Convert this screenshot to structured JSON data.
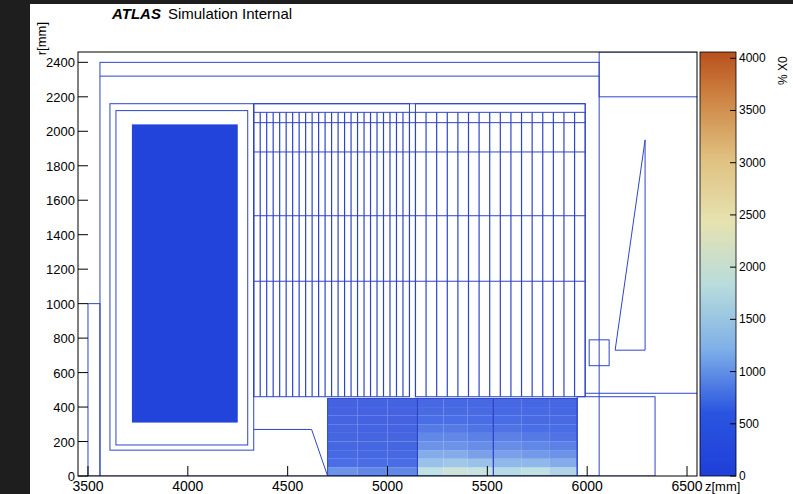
{
  "chart_data": {
    "type": "heatmap",
    "title": "ATLAS",
    "subtitle": "Simulation Internal",
    "x_label": "z[mm]",
    "y_label": "r[mm]",
    "xlim": [
      3450,
      6550
    ],
    "ylim": [
      0,
      2460
    ],
    "xticks": [
      3500,
      4000,
      4500,
      5000,
      5500,
      6000,
      6500
    ],
    "yticks": [
      0,
      200,
      400,
      600,
      800,
      1000,
      1200,
      1400,
      1600,
      1800,
      2000,
      2200,
      2400
    ],
    "z_edges": [
      4700,
      4850,
      5000,
      5150,
      5280,
      5400,
      5530,
      5670,
      5810,
      5950
    ],
    "r_edges": [
      0,
      50,
      100,
      150,
      200,
      250,
      300,
      350,
      400,
      450
    ],
    "cells": [
      [
        900,
        800,
        800,
        1800,
        2000,
        1900,
        1700,
        1800,
        1600
      ],
      [
        600,
        550,
        550,
        1300,
        1400,
        1300,
        1200,
        1200,
        1100
      ],
      [
        450,
        400,
        400,
        1100,
        1100,
        1000,
        1000,
        950,
        900
      ],
      [
        350,
        350,
        330,
        900,
        900,
        850,
        850,
        800,
        750
      ],
      [
        320,
        300,
        300,
        800,
        800,
        750,
        750,
        700,
        650
      ],
      [
        300,
        280,
        280,
        700,
        700,
        650,
        650,
        600,
        550
      ],
      [
        280,
        260,
        260,
        600,
        600,
        550,
        550,
        500,
        500
      ],
      [
        260,
        250,
        250,
        500,
        500,
        500,
        450,
        450,
        400
      ],
      [
        250,
        240,
        240,
        400,
        400,
        400,
        380,
        350,
        350
      ]
    ],
    "blocks": [
      {
        "z": [
          3720,
          4250
        ],
        "r": [
          310,
          2040
        ],
        "value": 150
      }
    ],
    "colorbar": {
      "range": [
        0,
        4060
      ],
      "ticks": [
        0,
        500,
        1000,
        1500,
        2000,
        2500,
        3000,
        3500,
        4000
      ],
      "label": "% X0"
    },
    "outlines": [
      [
        3500,
        0,
        3560,
        1000
      ],
      [
        3610,
        150,
        4330,
        2160
      ],
      [
        3640,
        180,
        4300,
        2120
      ],
      [
        4330,
        460,
        5110,
        2160
      ],
      [
        5140,
        460,
        5990,
        2160
      ],
      [
        4330,
        2110,
        5990,
        2160
      ],
      [
        4700,
        0,
        5150,
        450
      ],
      [
        5150,
        0,
        5530,
        450
      ],
      [
        5530,
        0,
        5950,
        450
      ],
      [
        5950,
        0,
        6340,
        460
      ],
      [
        6010,
        640,
        6110,
        790
      ],
      [
        3560,
        0,
        6060,
        2400
      ],
      [
        6060,
        2200,
        6560,
        2460
      ]
    ],
    "lines": [
      [
        4330,
        1880,
        5990,
        1880
      ],
      [
        4330,
        1510,
        5990,
        1510
      ],
      [
        4330,
        1130,
        5990,
        1130
      ],
      [
        4330,
        2050,
        5990,
        2050
      ],
      [
        3560,
        2320,
        6060,
        2320
      ],
      [
        4330,
        270,
        4620,
        270
      ],
      [
        4620,
        270,
        4700,
        0
      ],
      [
        6140,
        730,
        6290,
        730
      ],
      [
        6290,
        730,
        6290,
        1950
      ],
      [
        6140,
        730,
        6290,
        1950
      ],
      [
        5990,
        480,
        6560,
        480
      ],
      [
        6560,
        0,
        6560,
        2200
      ]
    ],
    "plates": [
      {
        "z": [
          4330,
          5110
        ],
        "r": [
          460,
          2110
        ],
        "n": 24
      },
      {
        "z": [
          5140,
          5990
        ],
        "r": [
          460,
          2110
        ],
        "n": 16
      }
    ]
  }
}
